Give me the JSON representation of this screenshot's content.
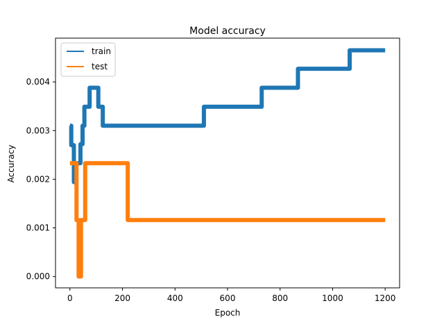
{
  "chart_data": {
    "type": "line",
    "title": "Model accuracy",
    "xlabel": "Epoch",
    "ylabel": "Accuracy",
    "xlim": [
      -55,
      1255
    ],
    "ylim": [
      -0.000233,
      0.0049
    ],
    "xticks": [
      0,
      200,
      400,
      600,
      800,
      1000,
      1200
    ],
    "xtick_labels": [
      "0",
      "200",
      "400",
      "600",
      "800",
      "1000",
      "1200"
    ],
    "yticks": [
      0,
      0.001,
      0.002,
      0.003,
      0.004
    ],
    "ytick_labels": [
      "0.000",
      "0.001",
      "0.002",
      "0.003",
      "0.004"
    ],
    "grid": false,
    "legend_position": "upper-left",
    "series": [
      {
        "name": "train",
        "color": "#1f77b4",
        "step_points": [
          [
            0,
            0.0031
          ],
          [
            5,
            0.0031
          ],
          [
            5,
            0.0027
          ],
          [
            15,
            0.0027
          ],
          [
            15,
            0.00194
          ],
          [
            20,
            0.00194
          ],
          [
            20,
            0.00233
          ],
          [
            40,
            0.00233
          ],
          [
            40,
            0.00272
          ],
          [
            48,
            0.00272
          ],
          [
            48,
            0.0031
          ],
          [
            55,
            0.0031
          ],
          [
            55,
            0.00349
          ],
          [
            75,
            0.00349
          ],
          [
            75,
            0.00388
          ],
          [
            108,
            0.00388
          ],
          [
            108,
            0.00349
          ],
          [
            125,
            0.00349
          ],
          [
            125,
            0.0031
          ],
          [
            510,
            0.0031
          ],
          [
            510,
            0.00349
          ],
          [
            730,
            0.00349
          ],
          [
            730,
            0.00388
          ],
          [
            868,
            0.00388
          ],
          [
            868,
            0.00427
          ],
          [
            1065,
            0.00427
          ],
          [
            1065,
            0.00465
          ],
          [
            1200,
            0.00465
          ]
        ]
      },
      {
        "name": "test",
        "color": "#ff7f0e",
        "step_points": [
          [
            0,
            0.00233
          ],
          [
            25,
            0.00233
          ],
          [
            25,
            0.00116
          ],
          [
            33,
            0.00116
          ],
          [
            33,
            0
          ],
          [
            42,
            0
          ],
          [
            42,
            0.00116
          ],
          [
            58,
            0.00116
          ],
          [
            58,
            0.00233
          ],
          [
            220,
            0.00233
          ],
          [
            220,
            0.00116
          ],
          [
            1200,
            0.00116
          ]
        ]
      }
    ]
  }
}
